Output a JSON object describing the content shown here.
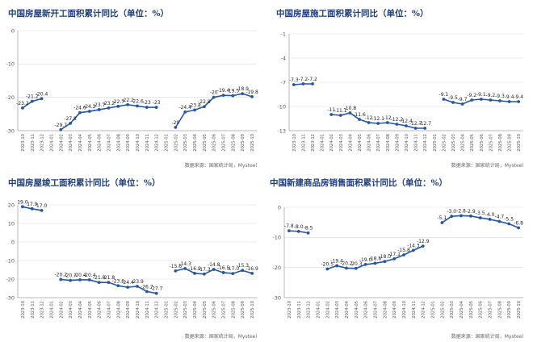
{
  "source_label": "数据来源：国家统计局，Mysteel",
  "colors": {
    "title": "#1f3f7f",
    "line": "#2456a4",
    "grid": "#d9d9d9",
    "axis": "#888888"
  },
  "chart_data": [
    {
      "type": "line",
      "title": "中国房屋新开工面积累计同比（单位：%）",
      "categories": [
        "2023-10",
        "2023-11",
        "2023-12",
        "2024-01",
        "2024-02",
        "2024-03",
        "2024-04",
        "2024-05",
        "2024-06",
        "2024-07",
        "2024-08",
        "2024-09",
        "2024-10",
        "2024-11",
        "2024-12",
        "2025-01",
        "2025-02",
        "2025-03",
        "2025-04",
        "2025-05",
        "2025-06",
        "2025-07",
        "2025-08",
        "2025-09",
        "2025-10"
      ],
      "values": [
        -23.2,
        -21.2,
        -20.4,
        null,
        -29.7,
        -27.8,
        -24.6,
        -24.2,
        -23.7,
        -23.2,
        -22.7,
        -22.2,
        -22.6,
        -23.0,
        -23.0,
        null,
        -29.0,
        -24.4,
        -23.8,
        -22.8,
        -20.0,
        -19.4,
        -19.5,
        -18.9,
        -19.8
      ],
      "labels": [
        "-23.2",
        "-21.2",
        "-20.4",
        "",
        "-29.7",
        "-27.8",
        "-24.6",
        "-24.2",
        "-23.7",
        "-23.2",
        "-22.7",
        "-22.2",
        "-22.6",
        "-23",
        "-23",
        "",
        "-29",
        "-24.4",
        "-23.8",
        "-22.8",
        "-20",
        "-19.4",
        "-19.5",
        "-18.9",
        "-19.8"
      ],
      "ylim": [
        0,
        -30
      ],
      "yticks": [
        0,
        -10,
        -20,
        -30
      ]
    },
    {
      "type": "line",
      "title": "中国房屋施工面积累计同比（单位：%）",
      "categories": [
        "2023-10",
        "2023-11",
        "2023-12",
        "2024-01",
        "2024-02",
        "2024-03",
        "2024-04",
        "2024-05",
        "2024-06",
        "2024-07",
        "2024-08",
        "2024-09",
        "2024-10",
        "2024-11",
        "2024-12",
        "2025-01",
        "2025-02",
        "2025-03",
        "2025-04",
        "2025-05",
        "2025-06",
        "2025-07",
        "2025-08",
        "2025-09",
        "2025-10"
      ],
      "values": [
        -7.3,
        -7.2,
        -7.2,
        null,
        -11.0,
        -11.1,
        -10.8,
        -11.6,
        -12.0,
        -12.1,
        -12.0,
        -12.2,
        -12.4,
        -12.7,
        -12.7,
        null,
        -9.1,
        -9.5,
        -9.7,
        -9.2,
        -9.1,
        -9.2,
        -9.3,
        -9.4,
        -9.4
      ],
      "labels": [
        "-7.3",
        "-7.2",
        "-7.2",
        "",
        "-11",
        "-11.1",
        "-10.8",
        "-11.6",
        "-12",
        "-12.1",
        "-12",
        "-12.2",
        "-12.4",
        "-12.7",
        "-12.7",
        "",
        "-9.1",
        "-9.5",
        "-9.7",
        "-9.2",
        "-9.1",
        "-9.2",
        "-9.3",
        "-9.4",
        "-9.4"
      ],
      "ylim": [
        -1,
        -13
      ],
      "yticks": [
        -1,
        -4,
        -7,
        -10,
        -13
      ]
    },
    {
      "type": "line",
      "title": "中国房屋竣工面积累计同比（单位：%）",
      "categories": [
        "2023-10",
        "2023-11",
        "2023-12",
        "2024-01",
        "2024-02",
        "2024-03",
        "2024-04",
        "2024-05",
        "2024-06",
        "2024-07",
        "2024-08",
        "2024-09",
        "2024-10",
        "2024-11",
        "2024-12",
        "2025-01",
        "2025-02",
        "2025-03",
        "2025-04",
        "2025-05",
        "2025-06",
        "2025-07",
        "2025-08",
        "2025-09",
        "2025-10"
      ],
      "values": [
        19.0,
        17.9,
        17.0,
        null,
        -20.2,
        -20.7,
        -20.4,
        -20.4,
        -21.8,
        -21.8,
        -23.6,
        -24.4,
        -23.9,
        -26.7,
        -27.7,
        null,
        -15.6,
        -14.3,
        -16.9,
        -17.3,
        -14.8,
        -16.5,
        -17.0,
        -15.3,
        -16.9
      ],
      "labels": [
        "19.0",
        "17.9",
        "17.0",
        "",
        "-20.2",
        "-20.7",
        "-20.4",
        "-20.4",
        "-21.8",
        "-21.8",
        "-23.6",
        "-24.4",
        "-23.9",
        "-26.7",
        "-27.7",
        "",
        "-15.6",
        "-14.3",
        "-16.9",
        "-17.3",
        "-14.8",
        "-16.5",
        "-17.0",
        "-15.3",
        "-16.9"
      ],
      "ylim": [
        20,
        -30
      ],
      "yticks": [
        20,
        10,
        0,
        -10,
        -20,
        -30
      ]
    },
    {
      "type": "line",
      "title": "中国新建商品房销售面积累计同比（单位：%）",
      "categories": [
        "2023-10",
        "2023-11",
        "2023-12",
        "2024-01",
        "2024-02",
        "2024-03",
        "2024-04",
        "2024-05",
        "2024-06",
        "2024-07",
        "2024-08",
        "2024-09",
        "2024-10",
        "2024-11",
        "2024-12",
        "2025-01",
        "2025-02",
        "2025-03",
        "2025-04",
        "2025-05",
        "2025-06",
        "2025-07",
        "2025-08",
        "2025-09",
        "2025-10"
      ],
      "values": [
        -7.8,
        -8.0,
        -8.5,
        null,
        -20.5,
        -19.4,
        -20.2,
        -20.3,
        -19.0,
        -18.6,
        -18.0,
        -17.1,
        -15.8,
        -14.3,
        -12.9,
        null,
        -5.1,
        -3.0,
        -2.8,
        -2.9,
        -3.5,
        -4.0,
        -4.7,
        -5.5,
        -6.8
      ],
      "labels": [
        "-7.8",
        "-8.0",
        "-8.5",
        "",
        "-20.5",
        "-19.4",
        "-20.2",
        "-20.3",
        "-19.0",
        "-18.6",
        "-18.0",
        "-17.1",
        "-15.8",
        "-14.3",
        "-12.9",
        "",
        "-5.1",
        "-3.0",
        "-2.8",
        "-2.9",
        "-3.5",
        "-4.0",
        "-4.7",
        "-5.5",
        "-6.8"
      ],
      "ylim": [
        0,
        -30
      ],
      "yticks": [
        0,
        -10,
        -20,
        -30
      ]
    }
  ]
}
